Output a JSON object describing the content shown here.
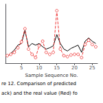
{
  "chart_data": {
    "type": "line",
    "xlabel": "Sample Sequence No.",
    "annotations": [
      "re 12. Comparison of predicted",
      "ack) and the real value (Red) fo"
    ],
    "x": [
      1,
      2,
      3,
      4,
      5,
      6,
      7,
      8,
      9,
      10,
      11,
      12,
      13,
      14,
      15,
      16,
      17,
      18,
      19,
      20,
      21,
      22,
      23,
      24,
      25,
      26
    ],
    "xlim": [
      0.5,
      26.5
    ],
    "xticks": [
      5,
      10,
      15,
      20,
      25
    ],
    "ylim": [
      -0.05,
      1.75
    ],
    "tick_labels": "x",
    "grid": false,
    "series": [
      {
        "color": "#000000",
        "line_style": "solid",
        "marker": "none",
        "values": [
          0.15,
          0.25,
          0.35,
          0.5,
          0.55,
          0.95,
          0.45,
          0.55,
          0.5,
          0.55,
          0.45,
          0.38,
          0.42,
          0.48,
          0.82,
          0.55,
          0.38,
          0.32,
          0.4,
          0.45,
          0.5,
          0.28,
          0.62,
          0.72,
          0.62,
          0.55
        ]
      },
      {
        "color": "#ee3333",
        "line_style": "dashed",
        "marker": "circle",
        "values": [
          0.18,
          0.22,
          0.28,
          0.42,
          0.6,
          1.0,
          0.38,
          0.22,
          0.12,
          0.48,
          0.62,
          0.28,
          0.22,
          0.28,
          1.55,
          0.38,
          0.18,
          0.15,
          0.2,
          0.22,
          0.22,
          0.12,
          0.52,
          0.65,
          0.52,
          0.45
        ]
      }
    ]
  }
}
